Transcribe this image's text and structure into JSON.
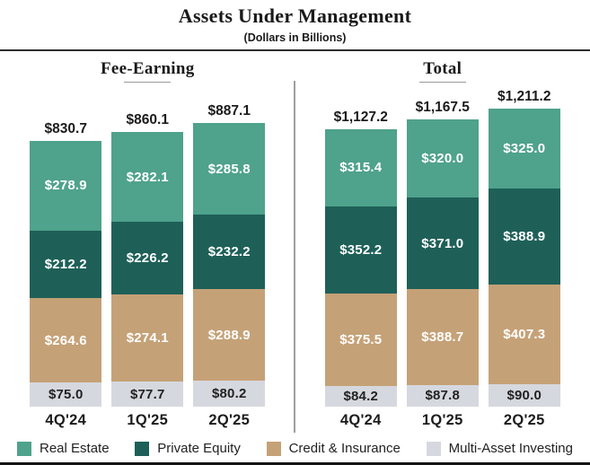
{
  "header": {
    "title": "Assets Under Management",
    "subtitle": "(Dollars in Billions)"
  },
  "colors": {
    "real_estate": "#4fa28c",
    "private_equity": "#1e6058",
    "credit_insurance": "#c5a177",
    "multi_asset": "#d6d8df",
    "divider": "#9e9e9e"
  },
  "chart_data": {
    "type": "bar",
    "stacked": true,
    "title": "Assets Under Management",
    "subtitle": "(Dollars in Billions)",
    "unit": "Dollars in Billions",
    "categories": [
      "4Q'24",
      "1Q'25",
      "2Q'25"
    ],
    "segments": [
      {
        "name": "Real Estate",
        "color": "#4fa28c",
        "text_color": "#ffffff"
      },
      {
        "name": "Private Equity",
        "color": "#1e6058",
        "text_color": "#ffffff"
      },
      {
        "name": "Credit & Insurance",
        "color": "#c5a177",
        "text_color": "#ffffff"
      },
      {
        "name": "Multi-Asset Investing",
        "color": "#d6d8df",
        "text_color": "#222222"
      }
    ],
    "panels": [
      {
        "title": "Fee-Earning",
        "totals": [
          830.7,
          860.1,
          887.1
        ],
        "total_labels": [
          "$830.7",
          "$860.1",
          "$887.1"
        ],
        "series": [
          {
            "name": "Real Estate",
            "values": [
              278.9,
              282.1,
              285.8
            ]
          },
          {
            "name": "Private Equity",
            "values": [
              212.2,
              226.2,
              232.2
            ]
          },
          {
            "name": "Credit & Insurance",
            "values": [
              264.6,
              274.1,
              288.9
            ]
          },
          {
            "name": "Multi-Asset Investing",
            "values": [
              75.0,
              77.7,
              80.2
            ]
          }
        ]
      },
      {
        "title": "Total",
        "totals": [
          1127.2,
          1167.5,
          1211.2
        ],
        "total_labels": [
          "$1,127.2",
          "$1,167.5",
          "$1,211.2"
        ],
        "series": [
          {
            "name": "Real Estate",
            "values": [
              315.4,
              320.0,
              325.0
            ]
          },
          {
            "name": "Private Equity",
            "values": [
              352.2,
              371.0,
              388.9
            ]
          },
          {
            "name": "Credit & Insurance",
            "values": [
              375.5,
              388.7,
              407.3
            ]
          },
          {
            "name": "Multi-Asset Investing",
            "values": [
              84.2,
              87.8,
              90.0
            ]
          }
        ]
      }
    ],
    "legend": [
      "Real Estate",
      "Private Equity",
      "Credit & Insurance",
      "Multi-Asset Investing"
    ],
    "legend_position": "bottom",
    "grid": false
  }
}
